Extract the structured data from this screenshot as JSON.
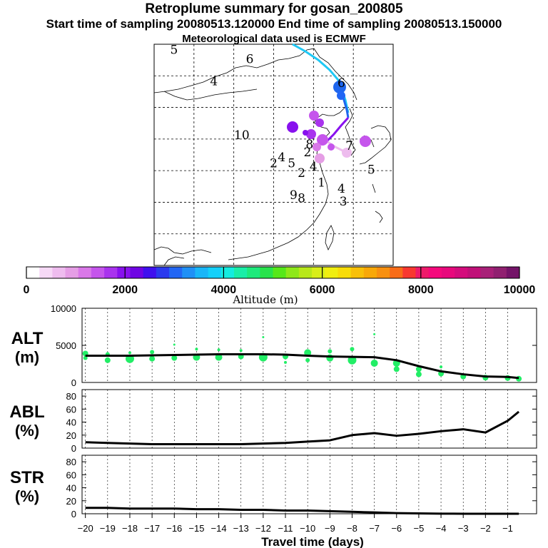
{
  "header": {
    "title": "Retroplume summary for gosan_200805",
    "sampling_line": "Start time of sampling 20080513.120000     End time of sampling 20080513.150000",
    "met_line": "Meteorological data used is ECMWF"
  },
  "colors": {
    "trajectory_points": "#22ee66",
    "median_line": "#000000",
    "colorbar": [
      "#ffffff",
      "#f6d9f6",
      "#eebcee",
      "#e59ee5",
      "#d978e8",
      "#c555ec",
      "#a933ee",
      "#8811ee",
      "#6f05e4",
      "#3f10ee",
      "#2a3aee",
      "#2266f4",
      "#1f90f6",
      "#19b6f8",
      "#15d0fa",
      "#14ece0",
      "#1aeea8",
      "#1eea7c",
      "#28e34c",
      "#56e81a",
      "#8ee81a",
      "#b8e81a",
      "#d8ee1a",
      "#f0ee10",
      "#f8dc08",
      "#f8c008",
      "#f8a808",
      "#f89010",
      "#f86c18",
      "#f83830",
      "#ee1a6a",
      "#f5087c",
      "#e8087c",
      "#d40c7c",
      "#c01078",
      "#a82078",
      "#902070",
      "#741468"
    ]
  },
  "colorbar": {
    "tick_labels": [
      "0",
      "2000",
      "4000",
      "6000",
      "8000",
      "10000"
    ],
    "title": "Altitude (m)"
  },
  "map": {
    "days_labels": [
      {
        "text": "5",
        "lon": 85,
        "lat": 53.5
      },
      {
        "text": "6",
        "lon": 104,
        "lat": 52
      },
      {
        "text": "4",
        "lon": 95,
        "lat": 48.5
      },
      {
        "text": "6",
        "lon": 127,
        "lat": 48.2
      },
      {
        "text": "10",
        "lon": 102,
        "lat": 40
      },
      {
        "text": "7",
        "lon": 129,
        "lat": 38.3
      },
      {
        "text": "8",
        "lon": 119,
        "lat": 38.5
      },
      {
        "text": "2",
        "lon": 118.5,
        "lat": 37.3
      },
      {
        "text": "4",
        "lon": 112,
        "lat": 36.5
      },
      {
        "text": "2",
        "lon": 110,
        "lat": 35.5
      },
      {
        "text": "5",
        "lon": 114.5,
        "lat": 35.5
      },
      {
        "text": "2",
        "lon": 117,
        "lat": 34
      },
      {
        "text": "4",
        "lon": 120,
        "lat": 35
      },
      {
        "text": "1",
        "lon": 122,
        "lat": 32.5
      },
      {
        "text": "9",
        "lon": 115,
        "lat": 30.5
      },
      {
        "text": "8",
        "lon": 117,
        "lat": 30
      },
      {
        "text": "4",
        "lon": 127,
        "lat": 31.5
      },
      {
        "text": "3",
        "lon": 127.5,
        "lat": 29.5
      },
      {
        "text": "5",
        "lon": 134.5,
        "lat": 34.5
      }
    ]
  },
  "chart_data": [
    {
      "type": "line",
      "panel": "ALT",
      "label_line1": "ALT",
      "label_line2": "(m)",
      "ylim": [
        0,
        10000
      ],
      "y_tick_labels": [
        "10000",
        "5000",
        "0"
      ],
      "median_x": [
        -20,
        -19,
        -18,
        -17,
        -16,
        -15,
        -14,
        -13,
        -12,
        -11,
        -10,
        -9,
        -8,
        -7,
        -6,
        -5,
        -4,
        -3,
        -2,
        -1,
        -0.5
      ],
      "median_y": [
        3600,
        3600,
        3600,
        3650,
        3700,
        3750,
        3800,
        3800,
        3800,
        3750,
        3600,
        3500,
        3450,
        3400,
        3000,
        2200,
        1500,
        1100,
        800,
        750,
        600
      ],
      "points": [
        {
          "x": -20,
          "y": 3300,
          "r": 3
        },
        {
          "x": -20,
          "y": 3900,
          "r": 4
        },
        {
          "x": -19,
          "y": 3000,
          "r": 4
        },
        {
          "x": -19,
          "y": 3800,
          "r": 3
        },
        {
          "x": -18,
          "y": 3200,
          "r": 6
        },
        {
          "x": -18,
          "y": 4000,
          "r": 2
        },
        {
          "x": -17,
          "y": 3200,
          "r": 4
        },
        {
          "x": -17,
          "y": 4100,
          "r": 3
        },
        {
          "x": -16,
          "y": 3300,
          "r": 4
        },
        {
          "x": -16,
          "y": 5100,
          "r": 1.5
        },
        {
          "x": -15,
          "y": 3400,
          "r": 5
        },
        {
          "x": -15,
          "y": 4500,
          "r": 2
        },
        {
          "x": -14,
          "y": 3400,
          "r": 5
        },
        {
          "x": -14,
          "y": 4400,
          "r": 2
        },
        {
          "x": -13,
          "y": 3500,
          "r": 4
        },
        {
          "x": -13,
          "y": 4300,
          "r": 2
        },
        {
          "x": -12,
          "y": 3400,
          "r": 6
        },
        {
          "x": -12,
          "y": 6100,
          "r": 1.5
        },
        {
          "x": -11,
          "y": 3500,
          "r": 4
        },
        {
          "x": -11,
          "y": 2700,
          "r": 2
        },
        {
          "x": -10,
          "y": 4000,
          "r": 5
        },
        {
          "x": -10,
          "y": 3000,
          "r": 3
        },
        {
          "x": -9,
          "y": 3300,
          "r": 5
        },
        {
          "x": -9,
          "y": 4200,
          "r": 3
        },
        {
          "x": -8,
          "y": 3000,
          "r": 6
        },
        {
          "x": -8,
          "y": 4500,
          "r": 3
        },
        {
          "x": -7,
          "y": 2600,
          "r": 5
        },
        {
          "x": -7,
          "y": 6500,
          "r": 1.5
        },
        {
          "x": -6,
          "y": 2600,
          "r": 5
        },
        {
          "x": -6,
          "y": 1800,
          "r": 4
        },
        {
          "x": -5,
          "y": 1800,
          "r": 4
        },
        {
          "x": -5,
          "y": 1100,
          "r": 4
        },
        {
          "x": -4,
          "y": 1200,
          "r": 4
        },
        {
          "x": -4,
          "y": 2100,
          "r": 2
        },
        {
          "x": -3,
          "y": 800,
          "r": 4
        },
        {
          "x": -2,
          "y": 650,
          "r": 4
        },
        {
          "x": -1,
          "y": 600,
          "r": 4
        },
        {
          "x": -0.5,
          "y": 500,
          "r": 4
        }
      ]
    },
    {
      "type": "line",
      "panel": "ABL",
      "label_line1": "ABL",
      "label_line2": "(%)",
      "ylim": [
        0,
        90
      ],
      "y_tick_labels": [
        "80",
        "60",
        "40",
        "20",
        "0"
      ],
      "x": [
        -20,
        -19,
        -18,
        -17,
        -16,
        -15,
        -14,
        -13,
        -12,
        -11,
        -10,
        -9,
        -8,
        -7,
        -6,
        -5,
        -4,
        -3,
        -2,
        -1,
        -0.5
      ],
      "y": [
        9,
        8,
        7,
        6,
        6,
        6,
        6,
        6,
        7,
        8,
        10,
        12,
        20,
        23,
        19,
        22,
        26,
        29,
        24,
        42,
        56
      ]
    },
    {
      "type": "line",
      "panel": "STR",
      "label_line1": "STR",
      "label_line2": "(%)",
      "ylim": [
        0,
        90
      ],
      "y_tick_labels": [
        "80",
        "60",
        "40",
        "20",
        "0"
      ],
      "x": [
        -20,
        -19,
        -18,
        -17,
        -16,
        -15,
        -14,
        -13,
        -12,
        -11,
        -10,
        -9,
        -8,
        -7,
        -6,
        -5,
        -4,
        -3,
        -2,
        -1,
        -0.5
      ],
      "y": [
        9,
        9,
        8,
        8,
        8,
        7,
        7,
        6,
        6,
        5,
        5,
        4,
        3,
        2,
        1,
        0.5,
        0.2,
        0,
        0,
        0,
        0
      ]
    }
  ],
  "x_axis": {
    "tick_labels": [
      "-20",
      "-19",
      "-18",
      "-17",
      "-16",
      "-15",
      "-14",
      "-13",
      "-12",
      "-11",
      "-10",
      "-9",
      "-8",
      "-7",
      "-6",
      "-5",
      "-4",
      "-3",
      "-2",
      "-1"
    ],
    "label": "Travel time (days)"
  }
}
